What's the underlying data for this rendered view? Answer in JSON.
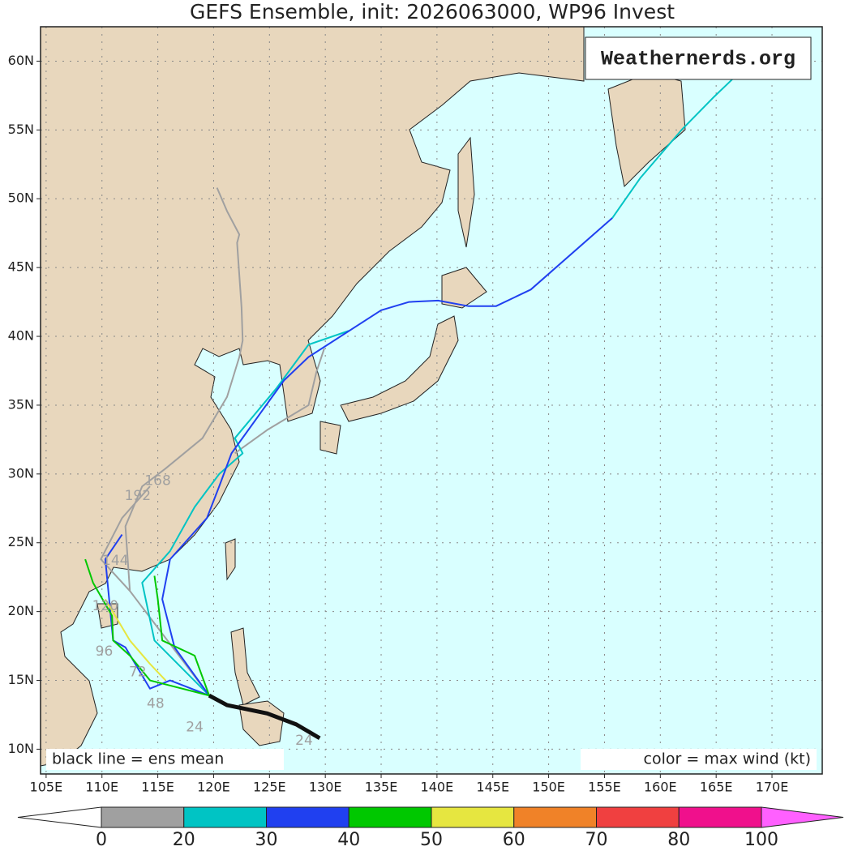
{
  "chart_data": {
    "type": "track-map",
    "title": "GEFS Ensemble, init: 2026063000, WP96 Invest",
    "watermark": "Weathernerds.org",
    "legend_mean": "black line = ens mean",
    "legend_color": "color = max wind (kt)",
    "xlim": [
      104.5,
      174.5
    ],
    "ylim": [
      8.2,
      62.5
    ],
    "xticks": [
      {
        "value": 105,
        "label": "105E"
      },
      {
        "value": 110,
        "label": "110E"
      },
      {
        "value": 115,
        "label": "115E"
      },
      {
        "value": 120,
        "label": "120E"
      },
      {
        "value": 125,
        "label": "125E"
      },
      {
        "value": 130,
        "label": "130E"
      },
      {
        "value": 135,
        "label": "135E"
      },
      {
        "value": 140,
        "label": "140E"
      },
      {
        "value": 145,
        "label": "145E"
      },
      {
        "value": 150,
        "label": "150E"
      },
      {
        "value": 155,
        "label": "155E"
      },
      {
        "value": 160,
        "label": "160E"
      },
      {
        "value": 165,
        "label": "165E"
      },
      {
        "value": 170,
        "label": "170E"
      }
    ],
    "yticks": [
      {
        "value": 10,
        "label": "10N"
      },
      {
        "value": 15,
        "label": "15N"
      },
      {
        "value": 20,
        "label": "20N"
      },
      {
        "value": 25,
        "label": "25N"
      },
      {
        "value": 30,
        "label": "30N"
      },
      {
        "value": 35,
        "label": "35N"
      },
      {
        "value": 40,
        "label": "40N"
      },
      {
        "value": 45,
        "label": "45N"
      },
      {
        "value": 50,
        "label": "50N"
      },
      {
        "value": 55,
        "label": "55N"
      },
      {
        "value": 60,
        "label": "60N"
      }
    ],
    "grid": true,
    "colorbar": {
      "levels": [
        0,
        20,
        30,
        40,
        50,
        60,
        70,
        80,
        100
      ],
      "colors": [
        "#a0a0a0",
        "#00c4c4",
        "#2040f0",
        "#00c800",
        "#e6e640",
        "#f08228",
        "#f04040",
        "#f0108c"
      ],
      "under_color": "#ffffff",
      "over_color": "#ff60ff"
    },
    "tracks": [
      {
        "color": "#a0a0a0",
        "lon": [
          119.6,
          112.5,
          112.1,
          113.6,
          115.7,
          119.0,
          121.2,
          122.3,
          122.6,
          122.5,
          122.1,
          122.3,
          121.2,
          120.3
        ],
        "lat": [
          13.9,
          21.5,
          26.2,
          29.1,
          30.4,
          32.6,
          35.6,
          38.5,
          39.7,
          42.1,
          46.8,
          47.4,
          49.1,
          50.8
        ]
      },
      {
        "color": "#a0a0a0",
        "lon": [
          112.5,
          109.9,
          111.8,
          114.3
        ],
        "lat": [
          21.5,
          23.8,
          26.8,
          29.1
        ]
      },
      {
        "color": "#a0a0a0",
        "lon": [
          121.9,
          124.8,
          128.5,
          129.2,
          129.9
        ],
        "lat": [
          31.5,
          33.2,
          35.0,
          37.4,
          39.1
        ]
      },
      {
        "color": "#00c4c4",
        "lon": [
          119.6,
          114.7,
          113.6,
          116.1,
          118.3,
          120.5,
          122.6,
          121.9,
          125.6,
          128.5,
          132.1
        ],
        "lat": [
          13.9,
          17.9,
          22.1,
          24.4,
          27.6,
          30.0,
          31.5,
          32.6,
          36.2,
          39.4,
          40.4
        ]
      },
      {
        "color": "#00c4c4",
        "lon": [
          155.7,
          158.2,
          161.9,
          164.8,
          166.6
        ],
        "lat": [
          48.6,
          51.5,
          55.0,
          57.4,
          58.8
        ]
      },
      {
        "color": "#2040f0",
        "lon": [
          119.6,
          116.5,
          115.4,
          116.1,
          119.4,
          120.5,
          121.6,
          126.3,
          128.5,
          135.0,
          137.5,
          140.1,
          142.8,
          145.3,
          148.4,
          155.7
        ],
        "lat": [
          13.9,
          17.4,
          20.9,
          23.8,
          26.8,
          29.1,
          31.5,
          36.8,
          38.5,
          41.9,
          42.5,
          42.6,
          42.2,
          42.2,
          43.4,
          48.6
        ]
      },
      {
        "color": "#2040f0",
        "lon": [
          119.6,
          116.1,
          114.3,
          112.1,
          111.0,
          110.3,
          111.8
        ],
        "lat": [
          13.9,
          15.0,
          14.4,
          17.4,
          17.9,
          23.8,
          25.6
        ]
      },
      {
        "color": "#00c800",
        "lon": [
          119.6,
          118.3,
          115.4,
          115.0,
          114.7
        ],
        "lat": [
          13.9,
          16.8,
          17.9,
          20.9,
          22.6
        ]
      },
      {
        "color": "#00c800",
        "lon": [
          119.6,
          114.3,
          112.5,
          111.0,
          110.9,
          109.2,
          108.5
        ],
        "lat": [
          13.9,
          15.0,
          16.8,
          17.9,
          19.7,
          22.1,
          23.8
        ]
      },
      {
        "color": "#e6e640",
        "lon": [
          110.3,
          112.5,
          114.3,
          115.7
        ],
        "lat": [
          20.9,
          17.9,
          16.2,
          15.0
        ]
      }
    ],
    "mean_track": {
      "lon": [
        119.6,
        121.2,
        124.8,
        127.4,
        129.5
      ],
      "lat": [
        13.9,
        13.2,
        12.6,
        11.8,
        10.8
      ]
    },
    "track_labels": [
      {
        "label": "24",
        "lon": 118.3,
        "lat": 11.6
      },
      {
        "label": "48",
        "lon": 114.8,
        "lat": 13.3
      },
      {
        "label": "72",
        "lon": 113.2,
        "lat": 15.6
      },
      {
        "label": "96",
        "lon": 110.2,
        "lat": 17.1
      },
      {
        "label": "120",
        "lon": 110.3,
        "lat": 20.4
      },
      {
        "label": "144",
        "lon": 111.2,
        "lat": 23.7
      },
      {
        "label": "168",
        "lon": 115.0,
        "lat": 29.5
      },
      {
        "label": "192",
        "lon": 113.2,
        "lat": 28.4
      },
      {
        "label": "24",
        "lon": 128.1,
        "lat": 10.6
      }
    ]
  }
}
